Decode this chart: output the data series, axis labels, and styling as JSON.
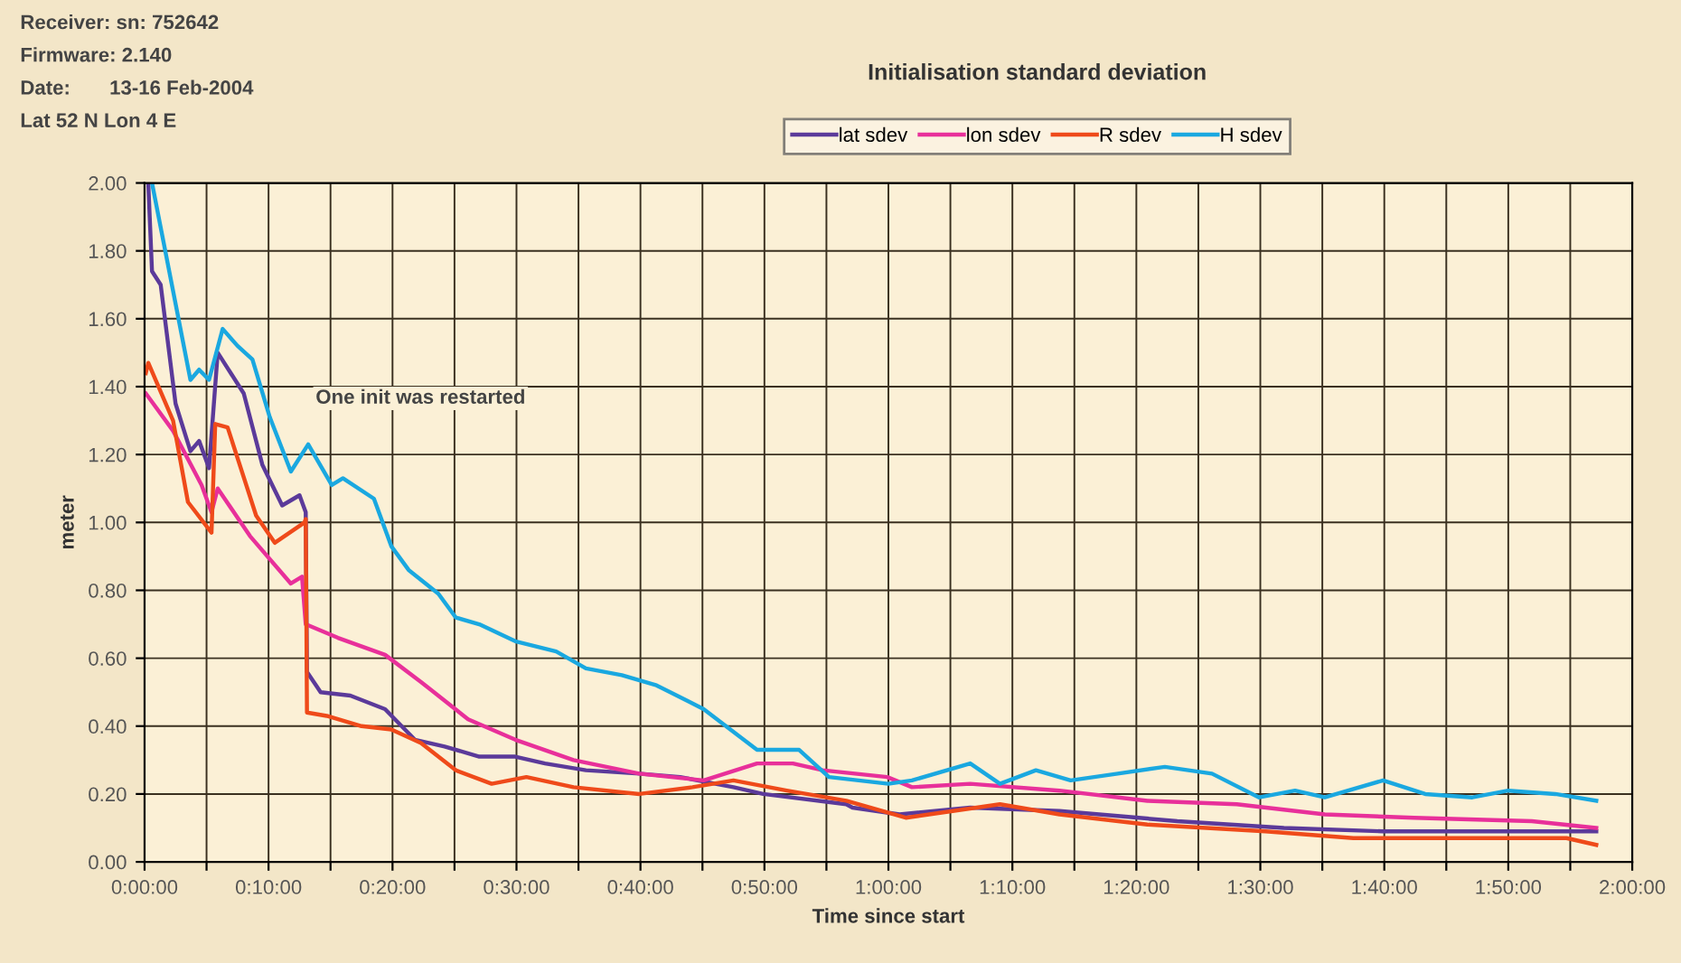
{
  "chart_data": {
    "type": "line",
    "title": "Initialisation standard deviation",
    "xlabel": "Time since start",
    "ylabel": "meter",
    "annotations": [
      "Receiver: sn: 752642",
      "Firmware: 2.140",
      "Date:       13-16 Feb-2004",
      "Lat 52 N Lon 4 E",
      "One init was restarted"
    ],
    "xlim": [
      0,
      120
    ],
    "ylim": [
      0,
      2
    ],
    "xticks": [
      {
        "value": 0,
        "label": "0:00:00"
      },
      {
        "value": 5,
        "label": null
      },
      {
        "value": 10,
        "label": "0:10:00"
      },
      {
        "value": 15,
        "label": null
      },
      {
        "value": 20,
        "label": "0:20:00"
      },
      {
        "value": 25,
        "label": null
      },
      {
        "value": 30,
        "label": "0:30:00"
      },
      {
        "value": 35,
        "label": null
      },
      {
        "value": 40,
        "label": "0:40:00"
      },
      {
        "value": 45,
        "label": null
      },
      {
        "value": 50,
        "label": "0:50:00"
      },
      {
        "value": 55,
        "label": null
      },
      {
        "value": 60,
        "label": "1:00:00"
      },
      {
        "value": 65,
        "label": null
      },
      {
        "value": 70,
        "label": "1:10:00"
      },
      {
        "value": 75,
        "label": null
      },
      {
        "value": 80,
        "label": "1:20:00"
      },
      {
        "value": 85,
        "label": null
      },
      {
        "value": 90,
        "label": "1:30:00"
      },
      {
        "value": 95,
        "label": null
      },
      {
        "value": 100,
        "label": "1:40:00"
      },
      {
        "value": 105,
        "label": null
      },
      {
        "value": 110,
        "label": "1:50:00"
      },
      {
        "value": 115,
        "label": null
      },
      {
        "value": 120,
        "label": "2:00:00"
      }
    ],
    "yticks": [
      {
        "value": 0,
        "label": "0.00"
      },
      {
        "value": 0.2,
        "label": "0.20"
      },
      {
        "value": 0.4,
        "label": "0.40"
      },
      {
        "value": 0.6,
        "label": "0.60"
      },
      {
        "value": 0.8,
        "label": "0.80"
      },
      {
        "value": 1.0,
        "label": "1.00"
      },
      {
        "value": 1.2,
        "label": "1.20"
      },
      {
        "value": 1.4,
        "label": "1.40"
      },
      {
        "value": 1.6,
        "label": "1.60"
      },
      {
        "value": 1.8,
        "label": "1.80"
      },
      {
        "value": 2.0,
        "label": "2.00"
      }
    ],
    "grid": true,
    "legend": "top",
    "marker": "none",
    "line_style": "solid",
    "series": [
      {
        "name": "lat sdev",
        "color": "#5b3a9a",
        "x": [
          0.3,
          0.6,
          1.3,
          2.5,
          3.7,
          4.4,
          5.2,
          5.9,
          8,
          9.5,
          11.1,
          12.5,
          13,
          13.1,
          14.2,
          16.6,
          19.4,
          21.8,
          24.2,
          27,
          29.9,
          32.3,
          35.6,
          39.9,
          43.2,
          47.5,
          49.9,
          56.6,
          57.1,
          60.9,
          66.6,
          73.8,
          83.3,
          91.9,
          99.9,
          107.1,
          117.1
        ],
        "values": [
          2.0,
          1.74,
          1.7,
          1.35,
          1.21,
          1.24,
          1.16,
          1.5,
          1.38,
          1.17,
          1.05,
          1.08,
          1.03,
          0.56,
          0.5,
          0.49,
          0.45,
          0.36,
          0.34,
          0.31,
          0.31,
          0.29,
          0.27,
          0.26,
          0.25,
          0.22,
          0.2,
          0.17,
          0.16,
          0.14,
          0.16,
          0.15,
          0.12,
          0.1,
          0.09,
          0.09,
          0.09
        ]
      },
      {
        "name": "lon sdev",
        "color": "#e8309a",
        "x": [
          0.1,
          2.3,
          4.6,
          5.4,
          5.9,
          8.5,
          11.8,
          12.7,
          13,
          15.6,
          19.4,
          22.3,
          26.1,
          29.9,
          34.6,
          39.9,
          45.1,
          49.4,
          52.3,
          54.7,
          59.9,
          61.9,
          66.6,
          73.8,
          80.9,
          88.1,
          95.2,
          102.4,
          111.9,
          117.1
        ],
        "values": [
          1.38,
          1.27,
          1.11,
          1.03,
          1.1,
          0.96,
          0.82,
          0.84,
          0.7,
          0.66,
          0.61,
          0.53,
          0.42,
          0.36,
          0.3,
          0.26,
          0.24,
          0.29,
          0.29,
          0.27,
          0.25,
          0.22,
          0.23,
          0.21,
          0.18,
          0.17,
          0.14,
          0.13,
          0.12,
          0.1
        ]
      },
      {
        "name": "R sdev",
        "color": "#ef4a1a",
        "x": [
          0.1,
          0.3,
          2.3,
          3.5,
          5.4,
          5.7,
          6.7,
          9,
          10.5,
          12.9,
          13,
          13.1,
          14.7,
          17.5,
          19.9,
          22.3,
          25.1,
          28,
          30.8,
          34.6,
          39.9,
          44.2,
          47.5,
          51.8,
          56.6,
          61.4,
          69,
          73.8,
          80.9,
          90.4,
          97.5,
          107.1,
          114.7,
          117.1
        ],
        "values": [
          1.44,
          1.47,
          1.3,
          1.06,
          0.97,
          1.29,
          1.28,
          1.02,
          0.94,
          1.0,
          1.01,
          0.44,
          0.43,
          0.4,
          0.39,
          0.35,
          0.27,
          0.23,
          0.25,
          0.22,
          0.2,
          0.22,
          0.24,
          0.21,
          0.18,
          0.13,
          0.17,
          0.14,
          0.11,
          0.09,
          0.07,
          0.07,
          0.07,
          0.05
        ]
      },
      {
        "name": "H sdev",
        "color": "#1aa8e0",
        "x": [
          0.6,
          3.7,
          4.4,
          5.2,
          6.3,
          7.5,
          8.7,
          10.1,
          11.8,
          13.2,
          15.1,
          16,
          18.5,
          19.9,
          21.3,
          23.7,
          25.1,
          27,
          29.9,
          33.2,
          35.6,
          38.5,
          41.3,
          45.1,
          49.4,
          52.8,
          55.2,
          60,
          61.9,
          66.6,
          69,
          71.9,
          74.7,
          78.5,
          82.3,
          86.1,
          89.9,
          92.8,
          95.2,
          99.9,
          103.3,
          107.1,
          110,
          113.8,
          117.1
        ],
        "values": [
          2.0,
          1.42,
          1.45,
          1.42,
          1.57,
          1.52,
          1.48,
          1.31,
          1.15,
          1.23,
          1.11,
          1.13,
          1.07,
          0.93,
          0.86,
          0.79,
          0.72,
          0.7,
          0.65,
          0.62,
          0.57,
          0.55,
          0.52,
          0.45,
          0.33,
          0.33,
          0.25,
          0.23,
          0.24,
          0.29,
          0.23,
          0.27,
          0.24,
          0.26,
          0.28,
          0.26,
          0.19,
          0.21,
          0.19,
          0.24,
          0.2,
          0.19,
          0.21,
          0.2,
          0.18
        ]
      }
    ]
  }
}
